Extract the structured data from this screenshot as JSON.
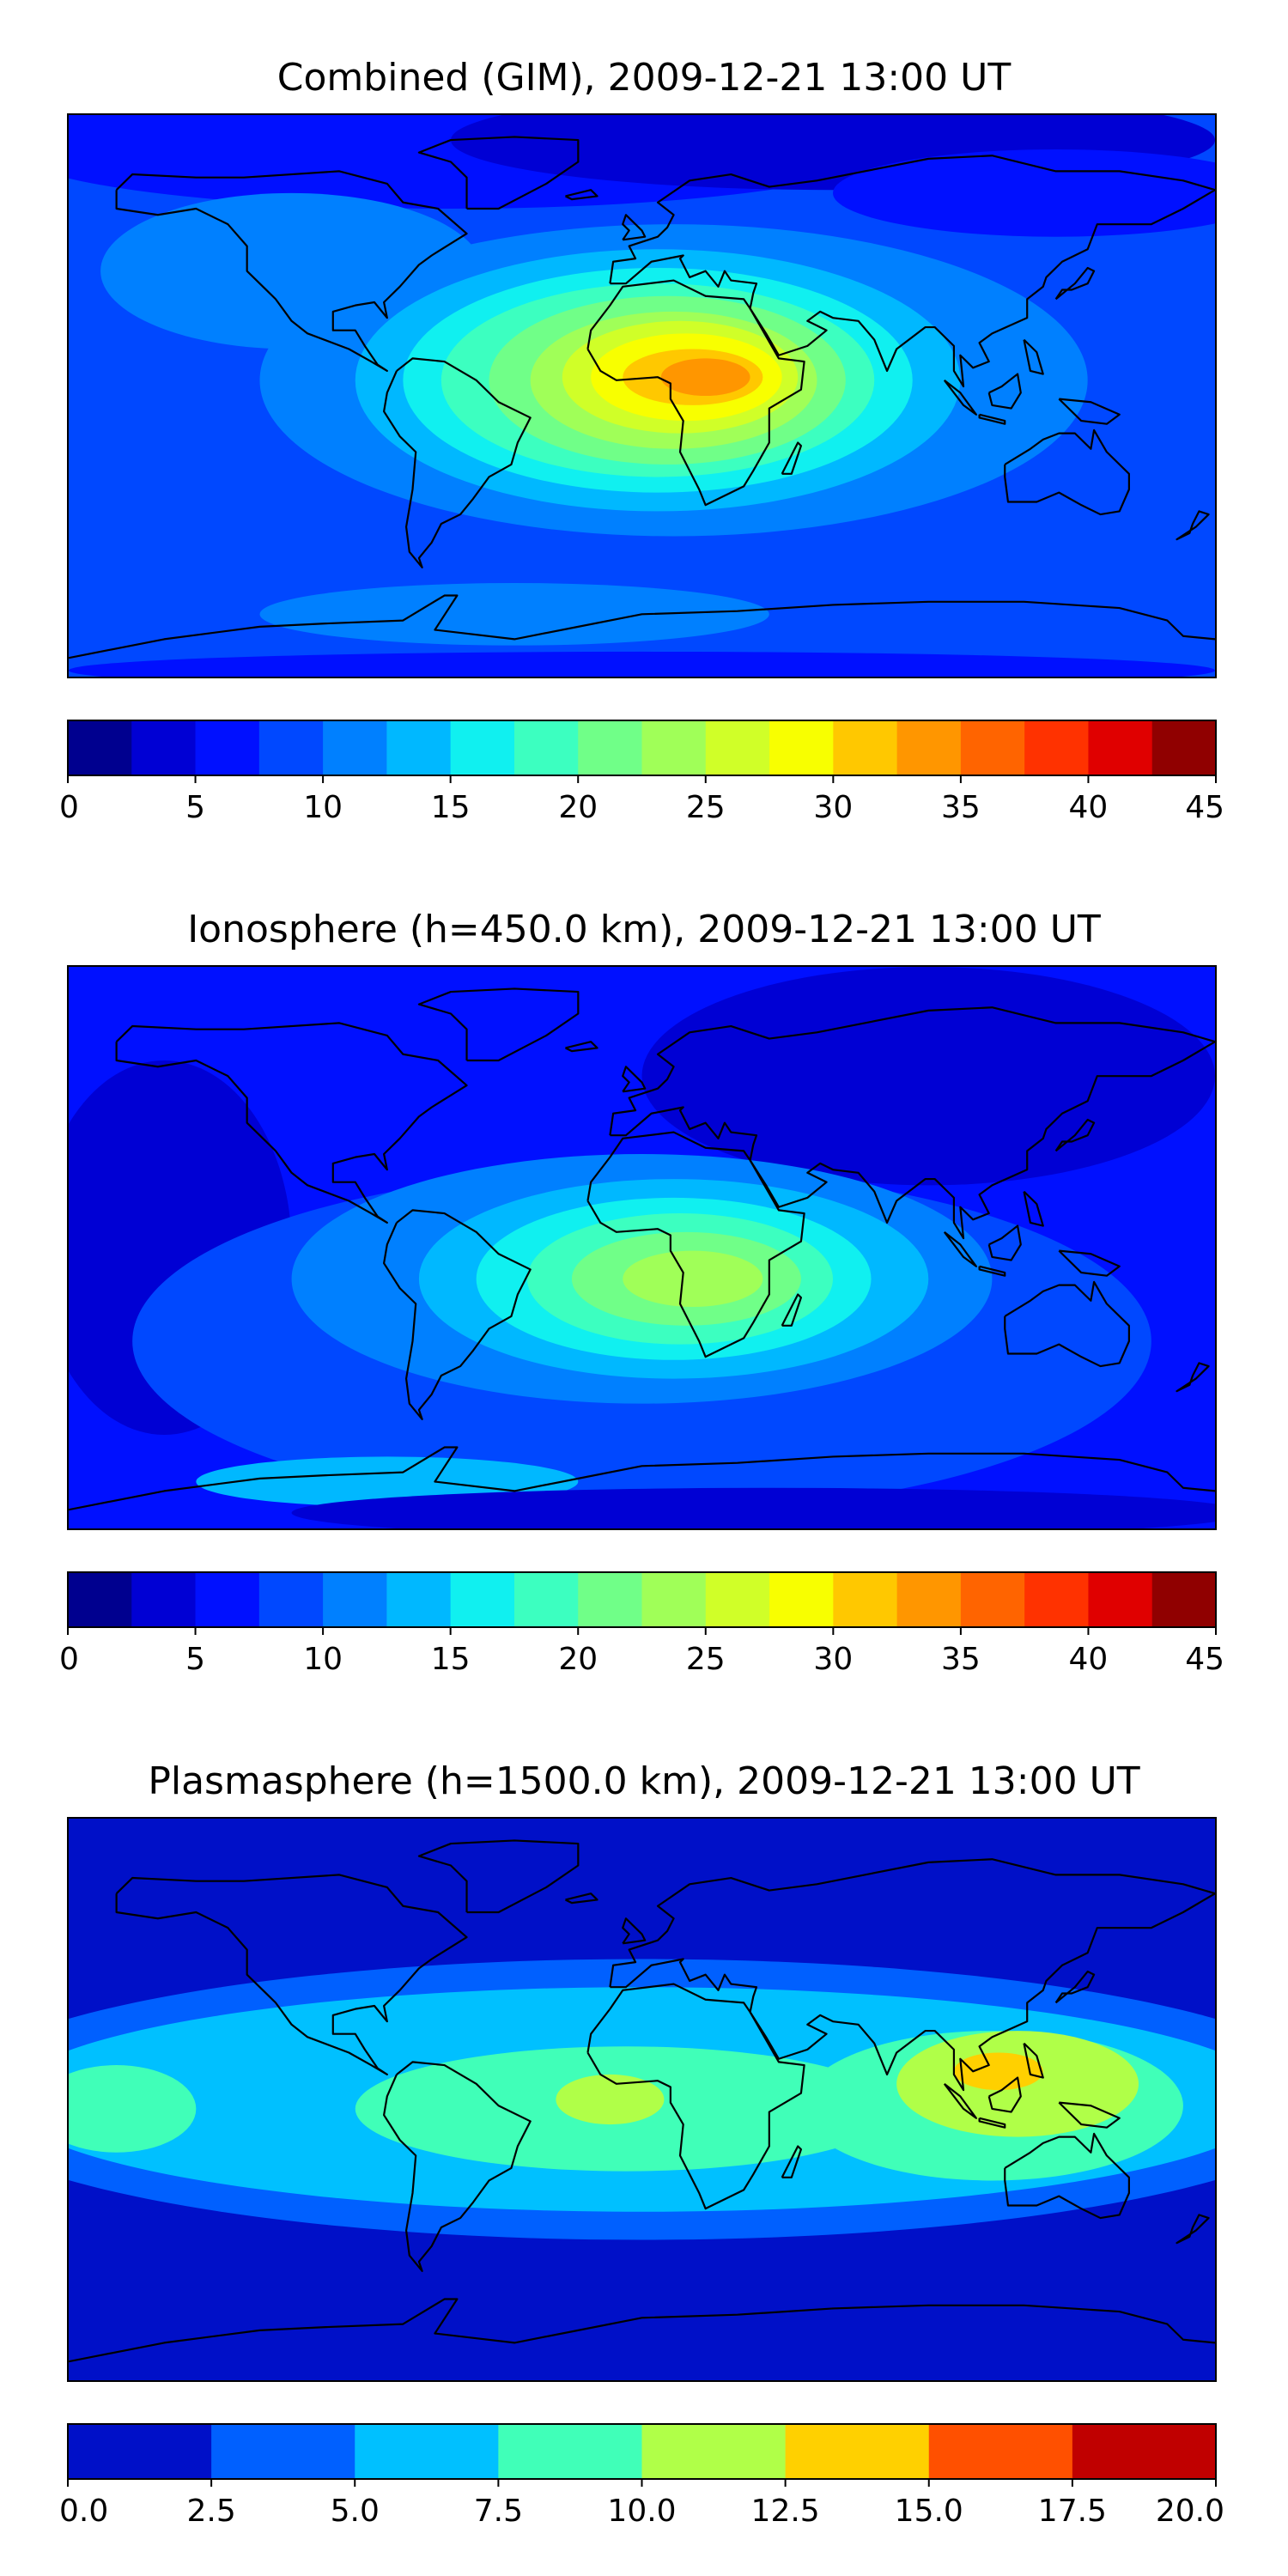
{
  "panels": [
    {
      "title": "Combined (GIM), 2009-12-21 13:00 UT",
      "colorbar": {
        "tick_labels": [
          "0",
          "5",
          "10",
          "15",
          "20",
          "25",
          "30",
          "35",
          "40",
          "45"
        ],
        "levels": [
          0,
          2.5,
          5,
          7.5,
          10,
          12.5,
          15,
          17.5,
          20,
          22.5,
          25,
          27.5,
          30,
          32.5,
          35,
          37.5,
          40,
          42.5,
          45
        ],
        "colors": [
          "#00008f",
          "#0000d4",
          "#0010ff",
          "#0048ff",
          "#0080ff",
          "#00b8ff",
          "#10f0f0",
          "#3cffc0",
          "#70ff88",
          "#a0ff58",
          "#d0ff28",
          "#f8ff00",
          "#ffc800",
          "#ff9600",
          "#ff6400",
          "#ff3200",
          "#e00000",
          "#900000"
        ]
      },
      "map": {
        "background": "#0048ff",
        "blobs": [
          {
            "lon": -60,
            "lat": 80,
            "rx": 140,
            "ry": 20,
            "color": "#0010ff"
          },
          {
            "lon": 60,
            "lat": 82,
            "rx": 120,
            "ry": 16,
            "color": "#0000d4"
          },
          {
            "lon": 130,
            "lat": 65,
            "rx": 70,
            "ry": 14,
            "color": "#0010ff"
          },
          {
            "lon": -110,
            "lat": 40,
            "rx": 60,
            "ry": 25,
            "color": "#0080ff"
          },
          {
            "lon": 10,
            "lat": 5,
            "rx": 130,
            "ry": 50,
            "color": "#0080ff"
          },
          {
            "lon": 5,
            "lat": 5,
            "rx": 95,
            "ry": 42,
            "color": "#00b8ff"
          },
          {
            "lon": 5,
            "lat": 5,
            "rx": 80,
            "ry": 36,
            "color": "#10f0f0"
          },
          {
            "lon": 5,
            "lat": 5,
            "rx": 68,
            "ry": 31,
            "color": "#3cffc0"
          },
          {
            "lon": 8,
            "lat": 5,
            "rx": 56,
            "ry": 27,
            "color": "#70ff88"
          },
          {
            "lon": 10,
            "lat": 5,
            "rx": 45,
            "ry": 22,
            "color": "#a0ff58"
          },
          {
            "lon": 12,
            "lat": 6,
            "rx": 37,
            "ry": 18,
            "color": "#d0ff28"
          },
          {
            "lon": 14,
            "lat": 6,
            "rx": 30,
            "ry": 14,
            "color": "#f8ff00"
          },
          {
            "lon": 16,
            "lat": 6,
            "rx": 22,
            "ry": 9,
            "color": "#ffc800"
          },
          {
            "lon": 20,
            "lat": 6,
            "rx": 14,
            "ry": 6,
            "color": "#ff9600"
          },
          {
            "lon": -40,
            "lat": -70,
            "rx": 80,
            "ry": 10,
            "color": "#0080ff"
          },
          {
            "lon": 0,
            "lat": -88,
            "rx": 180,
            "ry": 6,
            "color": "#0010ff"
          }
        ]
      }
    },
    {
      "title": "Ionosphere  (h=450.0 km), 2009-12-21 13:00 UT",
      "colorbar": {
        "tick_labels": [
          "0",
          "5",
          "10",
          "15",
          "20",
          "25",
          "30",
          "35",
          "40",
          "45"
        ],
        "levels": [
          0,
          2.5,
          5,
          7.5,
          10,
          12.5,
          15,
          17.5,
          20,
          22.5,
          25,
          27.5,
          30,
          32.5,
          35,
          37.5,
          40,
          42.5,
          45
        ],
        "colors": [
          "#00008f",
          "#0000d4",
          "#0010ff",
          "#0048ff",
          "#0080ff",
          "#00b8ff",
          "#10f0f0",
          "#3cffc0",
          "#70ff88",
          "#a0ff58",
          "#d0ff28",
          "#f8ff00",
          "#ffc800",
          "#ff9600",
          "#ff6400",
          "#ff3200",
          "#e00000",
          "#900000"
        ]
      },
      "map": {
        "background": "#0010ff",
        "blobs": [
          {
            "lon": 90,
            "lat": 55,
            "rx": 90,
            "ry": 35,
            "color": "#0000d4"
          },
          {
            "lon": -150,
            "lat": 0,
            "rx": 40,
            "ry": 60,
            "color": "#0000d4"
          },
          {
            "lon": 0,
            "lat": -30,
            "rx": 160,
            "ry": 55,
            "color": "#0048ff"
          },
          {
            "lon": 0,
            "lat": -10,
            "rx": 110,
            "ry": 40,
            "color": "#0080ff"
          },
          {
            "lon": 10,
            "lat": -10,
            "rx": 80,
            "ry": 32,
            "color": "#00b8ff"
          },
          {
            "lon": 10,
            "lat": -10,
            "rx": 62,
            "ry": 26,
            "color": "#10f0f0"
          },
          {
            "lon": 12,
            "lat": -10,
            "rx": 48,
            "ry": 21,
            "color": "#3cffc0"
          },
          {
            "lon": 14,
            "lat": -10,
            "rx": 36,
            "ry": 15,
            "color": "#70ff88"
          },
          {
            "lon": 16,
            "lat": -10,
            "rx": 22,
            "ry": 9,
            "color": "#a0ff58"
          },
          {
            "lon": -80,
            "lat": -75,
            "rx": 60,
            "ry": 8,
            "color": "#00b8ff"
          },
          {
            "lon": 40,
            "lat": -85,
            "rx": 150,
            "ry": 8,
            "color": "#0000d4"
          }
        ]
      }
    },
    {
      "title": "Plasmasphere (h=1500.0 km), 2009-12-21 13:00 UT",
      "colorbar": {
        "tick_labels": [
          "0.0",
          "2.5",
          "5.0",
          "7.5",
          "10.0",
          "12.5",
          "15.0",
          "17.5",
          "20.0"
        ],
        "levels": [
          0,
          2.5,
          5,
          7.5,
          10,
          12.5,
          15,
          17.5,
          20
        ],
        "colors": [
          "#0010c8",
          "#0060ff",
          "#00c0ff",
          "#40ffb8",
          "#b0ff48",
          "#ffd000",
          "#ff5000",
          "#c00000"
        ]
      },
      "map": {
        "background": "#0010c8",
        "blobs": [
          {
            "lon": 0,
            "lat": 0,
            "rx": 220,
            "ry": 45,
            "color": "#0060ff"
          },
          {
            "lon": 0,
            "lat": 0,
            "rx": 200,
            "ry": 36,
            "color": "#00c0ff"
          },
          {
            "lon": -5,
            "lat": -3,
            "rx": 85,
            "ry": 20,
            "color": "#40ffb8"
          },
          {
            "lon": 110,
            "lat": -2,
            "rx": 60,
            "ry": 24,
            "color": "#40ffb8"
          },
          {
            "lon": -165,
            "lat": -3,
            "rx": 25,
            "ry": 14,
            "color": "#40ffb8"
          },
          {
            "lon": -10,
            "lat": 0,
            "rx": 17,
            "ry": 8,
            "color": "#b0ff48"
          },
          {
            "lon": 118,
            "lat": 5,
            "rx": 38,
            "ry": 17,
            "color": "#b0ff48"
          },
          {
            "lon": 112,
            "lat": 9,
            "rx": 14,
            "ry": 6,
            "color": "#ffd000"
          }
        ]
      }
    }
  ]
}
